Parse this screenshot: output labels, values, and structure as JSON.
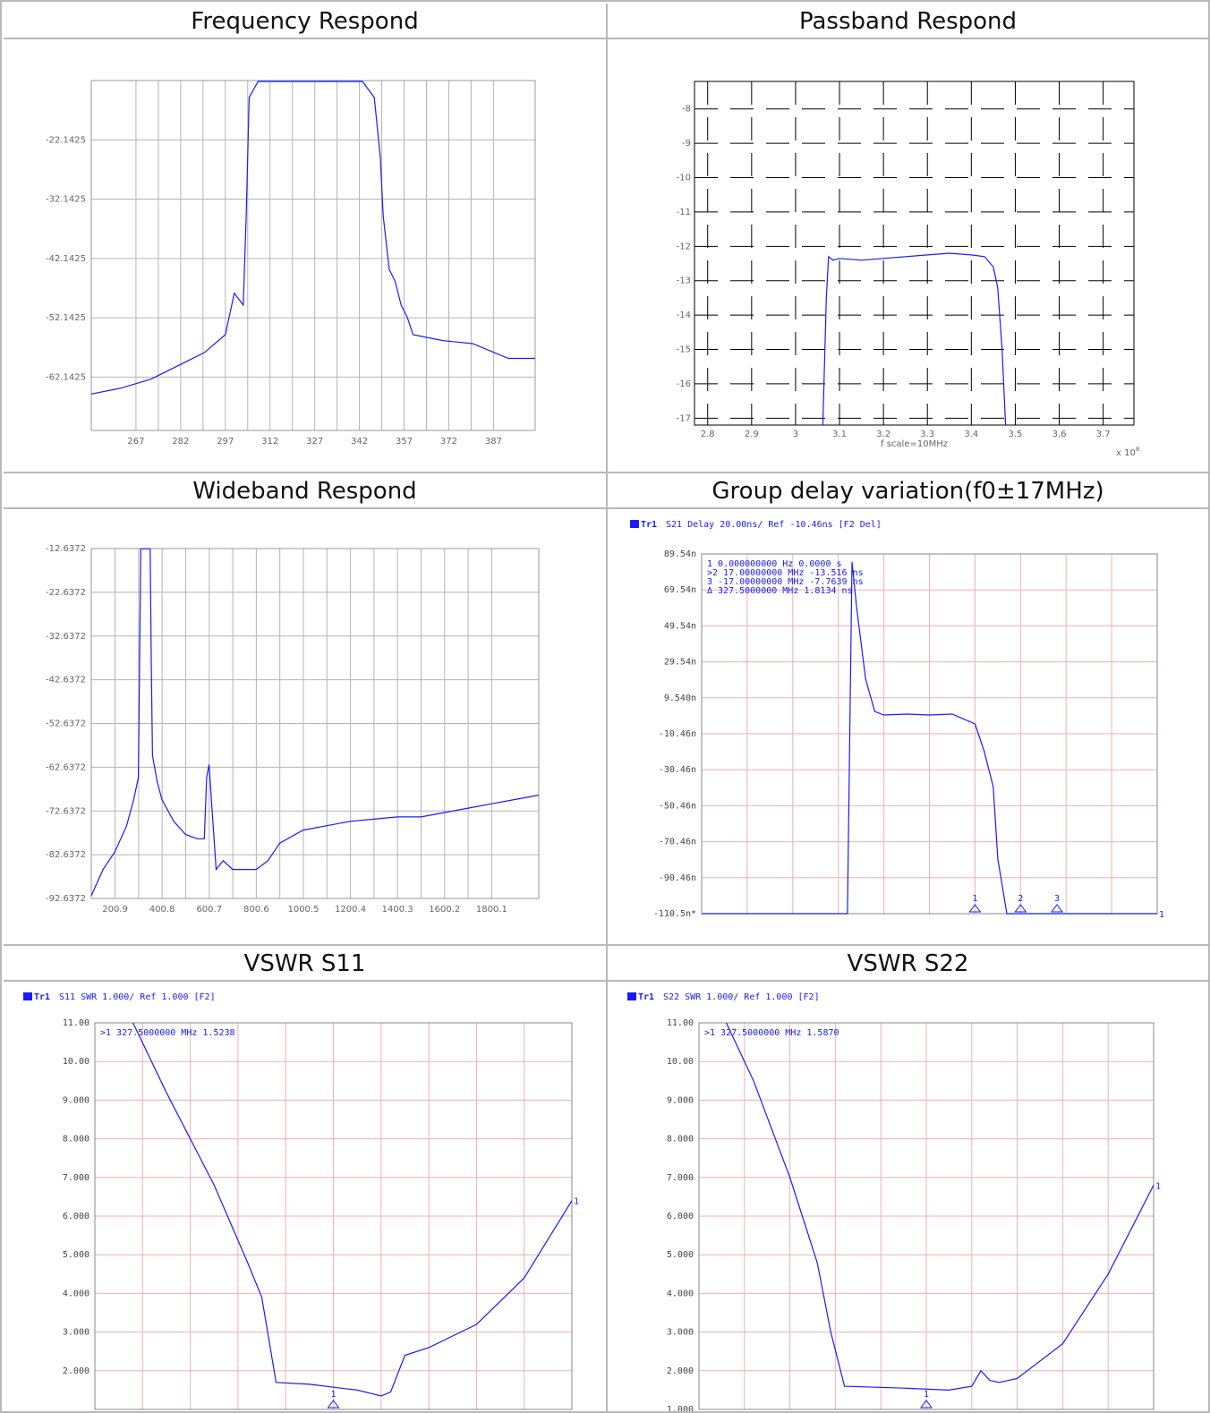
{
  "titles": {
    "freq": "Frequency Respond",
    "pass": "Passband Respond",
    "wide": "Wideband Respond",
    "gd": "Group delay variation(f0±17MHz)",
    "s11": "VSWR S11",
    "s22": "VSWR S22"
  },
  "colors": {
    "trace": "#1a1aff",
    "grid_gray": "#b4b4b4",
    "grid_pink": "#f0b0b0",
    "pass_grid": "#000000"
  },
  "chart_data": [
    {
      "id": "freq",
      "type": "line",
      "title": "Frequency Respond",
      "xlim": [
        252,
        401
      ],
      "ylim": [
        -71.1425,
        -12.1425
      ],
      "xticks": [
        "267",
        "282",
        "297",
        "312",
        "327",
        "342",
        "357",
        "372",
        "387"
      ],
      "xtick_values": [
        267,
        282,
        297,
        312,
        327,
        342,
        357,
        372,
        387
      ],
      "yticks": [
        "-22.1425",
        "-32.1425",
        "-42.1425",
        "-52.1425",
        "-62.1425"
      ],
      "ytick_values": [
        -22.1425,
        -32.1425,
        -42.1425,
        -52.1425,
        -62.1425
      ],
      "grid": true,
      "series": [
        {
          "x": [
            252,
            262,
            272,
            282,
            290,
            297,
            300,
            303,
            304,
            305,
            308,
            310,
            327,
            343,
            347,
            349,
            350,
            352,
            354,
            356,
            358,
            360,
            370,
            380,
            392,
            401
          ],
          "y": [
            -65,
            -64,
            -62.5,
            -60,
            -58,
            -55,
            -48,
            -50,
            -35,
            -15,
            -12.3,
            -12.3,
            -12.3,
            -12.3,
            -15,
            -25,
            -35,
            -44,
            -46,
            -50,
            -52,
            -55,
            -56,
            -56.5,
            -59,
            -59
          ]
        }
      ]
    },
    {
      "id": "pass",
      "type": "line",
      "title": "Passband Respond",
      "xlabel": "f scale=10MHz",
      "xunit": "x 10",
      "xunit_exp": "8",
      "xlim": [
        2.77,
        3.77
      ],
      "ylim": [
        -17.2,
        -7.2
      ],
      "xticks": [
        "2.8",
        "2.9",
        "3",
        "3.1",
        "3.2",
        "3.3",
        "3.4",
        "3.5",
        "3.6",
        "3.7"
      ],
      "xtick_values": [
        2.8,
        2.9,
        3.0,
        3.1,
        3.2,
        3.3,
        3.4,
        3.5,
        3.6,
        3.7
      ],
      "yticks": [
        "-8",
        "-9",
        "-10",
        "-11",
        "-12",
        "-13",
        "-14",
        "-15",
        "-16",
        "-17"
      ],
      "ytick_values": [
        -8,
        -9,
        -10,
        -11,
        -12,
        -13,
        -14,
        -15,
        -16,
        -17
      ],
      "grid": true,
      "series": [
        {
          "x": [
            3.062,
            3.07,
            3.075,
            3.085,
            3.1,
            3.15,
            3.2,
            3.25,
            3.3,
            3.35,
            3.4,
            3.43,
            3.45,
            3.46,
            3.47,
            3.478
          ],
          "y": [
            -17.2,
            -13.5,
            -12.3,
            -12.4,
            -12.35,
            -12.4,
            -12.35,
            -12.3,
            -12.25,
            -12.2,
            -12.25,
            -12.3,
            -12.6,
            -13.2,
            -15,
            -17.2
          ]
        }
      ]
    },
    {
      "id": "wide",
      "type": "line",
      "title": "Wideband Respond",
      "xlim": [
        100,
        2000
      ],
      "ylim": [
        -92.6372,
        -12.6372
      ],
      "xticks": [
        "200.9",
        "400.8",
        "600.7",
        "800.6",
        "1000.5",
        "1200.4",
        "1400.3",
        "1600.2",
        "1800.1"
      ],
      "xtick_values": [
        200.9,
        400.8,
        600.7,
        800.6,
        1000.5,
        1200.4,
        1400.3,
        1600.2,
        1800.1
      ],
      "yticks": [
        "-12.6372",
        "-22.6372",
        "-32.6372",
        "-42.6372",
        "-52.6372",
        "-62.6372",
        "-72.6372",
        "-82.6372",
        "-92.6372"
      ],
      "ytick_values": [
        -12.6372,
        -22.6372,
        -32.6372,
        -42.6372,
        -52.6372,
        -62.6372,
        -72.6372,
        -82.6372,
        -92.6372
      ],
      "grid": true,
      "series": [
        {
          "x": [
            100,
            150,
            200,
            250,
            280,
            300,
            305,
            310,
            350,
            355,
            360,
            380,
            400,
            450,
            500,
            550,
            580,
            590,
            600,
            610,
            630,
            660,
            700,
            800,
            850,
            900,
            1000,
            1100,
            1200,
            1300,
            1400,
            1500,
            1600,
            1700,
            1800,
            1900,
            2000
          ],
          "y": [
            -92,
            -86,
            -82,
            -76,
            -70,
            -65,
            -40,
            -12.7,
            -12.7,
            -40,
            -60,
            -66,
            -70,
            -75,
            -78,
            -79,
            -79,
            -65,
            -62,
            -70,
            -86,
            -84,
            -86,
            -86,
            -84,
            -80,
            -77,
            -76,
            -75,
            -74.5,
            -74,
            -74,
            -73,
            -72,
            -71,
            -70,
            -69
          ]
        }
      ]
    },
    {
      "id": "gd",
      "type": "line",
      "title": "Group delay variation(f0±17MHz)",
      "header": "S21 Delay 20.00ns/ Ref -10.46ns [F2 Del]",
      "trace_label": "Tr1",
      "markers": [
        "  1  0.000000000 Hz    0.0000 s",
        ">2  17.00000000 MHz -13.516 ns",
        "  3 -17.00000000 MHz -7.7639 ns",
        "  Δ  327.5000000 MHz  1.8134 ns"
      ],
      "marker_points": [
        "1",
        "2",
        "3"
      ],
      "end_label": "1",
      "ylim": [
        -110.46,
        89.54
      ],
      "yticks": [
        "89.54n",
        "69.54n",
        "49.54n",
        "29.54n",
        "9.540n",
        "-10.46n",
        "-30.46n",
        "-50.46n",
        "-70.46n",
        "-90.46n",
        "-110.5n*"
      ],
      "ytick_values": [
        89.54,
        69.54,
        49.54,
        29.54,
        9.54,
        -10.46,
        -30.46,
        -50.46,
        -70.46,
        -90.46,
        -110.46
      ],
      "grid": true,
      "series": [
        {
          "x": [
            0,
            0.32,
            0.33,
            0.34,
            0.36,
            0.38,
            0.4,
            0.45,
            0.5,
            0.55,
            0.6,
            0.62,
            0.64,
            0.65,
            0.67,
            0.7,
            1.0
          ],
          "y": [
            -110.46,
            -110.46,
            85,
            60,
            20,
            2,
            0,
            0.5,
            0,
            0.5,
            -5,
            -20,
            -40,
            -80,
            -110.46,
            -110.46,
            -110.46
          ]
        }
      ]
    },
    {
      "id": "s11",
      "type": "line",
      "title": "VSWR S11",
      "header": "S11 SWR 1.000/ Ref 1.000 [F2]",
      "trace_label": "Tr1",
      "markers": [
        ">1  327.5000000 MHz  1.5238"
      ],
      "marker_points": [
        "1"
      ],
      "end_label": "1",
      "ylim": [
        1.0,
        11.0
      ],
      "yticks": [
        "11.00",
        "10.00",
        "9.000",
        "8.000",
        "7.000",
        "6.000",
        "5.000",
        "4.000",
        "3.000",
        "2.000"
      ],
      "ytick_values": [
        11,
        10,
        9,
        8,
        7,
        6,
        5,
        4,
        3,
        2
      ],
      "grid": true,
      "series": [
        {
          "x": [
            0.08,
            0.15,
            0.25,
            0.32,
            0.35,
            0.38,
            0.45,
            0.55,
            0.6,
            0.62,
            0.65,
            0.7,
            0.8,
            0.9,
            1.0
          ],
          "y": [
            11,
            9.2,
            6.8,
            4.8,
            3.9,
            1.7,
            1.65,
            1.5,
            1.35,
            1.45,
            2.4,
            2.6,
            3.2,
            4.4,
            6.4
          ]
        }
      ]
    },
    {
      "id": "s22",
      "type": "line",
      "title": "VSWR S22",
      "header": "S22 SWR 1.000/ Ref 1.000 [F2]",
      "trace_label": "Tr1",
      "markers": [
        ">1  327.5000000 MHz  1.5870"
      ],
      "marker_points": [
        "1"
      ],
      "end_label": "1",
      "ylim": [
        1.0,
        11.0
      ],
      "yticks": [
        "11.00",
        "10.00",
        "9.000",
        "8.000",
        "7.000",
        "6.000",
        "5.000",
        "4.000",
        "3.000",
        "2.000",
        "1.000"
      ],
      "ytick_values": [
        11,
        10,
        9,
        8,
        7,
        6,
        5,
        4,
        3,
        2,
        1
      ],
      "grid": true,
      "series": [
        {
          "x": [
            0.06,
            0.12,
            0.2,
            0.26,
            0.29,
            0.32,
            0.45,
            0.55,
            0.6,
            0.62,
            0.64,
            0.66,
            0.7,
            0.8,
            0.9,
            1.0
          ],
          "y": [
            11,
            9.5,
            7,
            4.8,
            3.0,
            1.6,
            1.55,
            1.5,
            1.6,
            2.0,
            1.75,
            1.7,
            1.8,
            2.7,
            4.5,
            6.8
          ]
        }
      ]
    }
  ]
}
